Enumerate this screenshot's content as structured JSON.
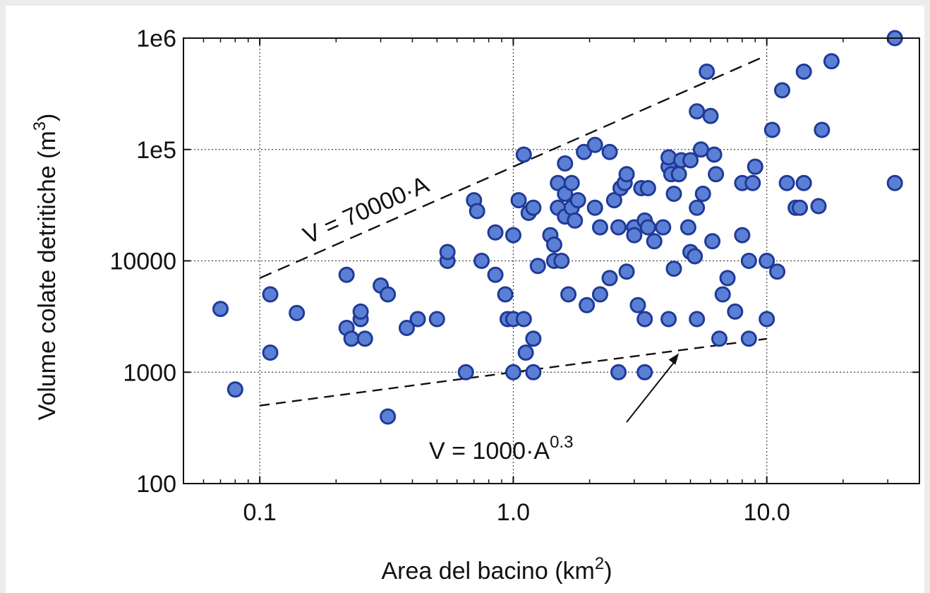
{
  "chart_data": {
    "type": "scatter",
    "xlabel": "Area del bacino (km",
    "xlabel_sup": "2",
    "xlabel_end": ")",
    "ylabel": "Volume colate detritiche (m",
    "ylabel_sup": "3",
    "ylabel_end": ")",
    "x_scale": "log",
    "y_scale": "log",
    "xlim": [
      0.05,
      40
    ],
    "ylim": [
      100,
      1000000
    ],
    "x_ticks": [
      0.1,
      1.0,
      10.0
    ],
    "x_tick_labels": [
      "0.1",
      "1.0",
      "10.0"
    ],
    "y_ticks": [
      100,
      1000,
      10000,
      100000,
      1000000
    ],
    "y_tick_labels": [
      "100",
      "1000",
      "10000",
      "1e5",
      "1e6"
    ],
    "grid": true,
    "marker_fill": "#5b7fd4",
    "marker_stroke": "#1f3a96",
    "lines": [
      {
        "label": "V = 70000·A",
        "coef": 70000,
        "exp": 1.0,
        "x_range": [
          0.1,
          10
        ],
        "style": "dashed"
      },
      {
        "label": "V = 1000·A",
        "label_sup": "0.3",
        "coef": 1000,
        "exp": 0.3,
        "x_range": [
          0.1,
          10
        ],
        "style": "dashed"
      }
    ],
    "points": [
      [
        0.07,
        3700
      ],
      [
        0.08,
        700
      ],
      [
        0.11,
        1500
      ],
      [
        0.11,
        5000
      ],
      [
        0.14,
        3400
      ],
      [
        0.22,
        7500
      ],
      [
        0.22,
        2500
      ],
      [
        0.23,
        2000
      ],
      [
        0.25,
        3000
      ],
      [
        0.25,
        3500
      ],
      [
        0.26,
        2000
      ],
      [
        0.3,
        6000
      ],
      [
        0.32,
        5000
      ],
      [
        0.32,
        400
      ],
      [
        0.38,
        2500
      ],
      [
        0.42,
        3000
      ],
      [
        0.5,
        3000
      ],
      [
        0.55,
        10000
      ],
      [
        0.55,
        12000
      ],
      [
        0.65,
        1000
      ],
      [
        0.7,
        35000
      ],
      [
        0.72,
        28000
      ],
      [
        0.75,
        10000
      ],
      [
        0.85,
        18000
      ],
      [
        0.85,
        7500
      ],
      [
        0.93,
        5000
      ],
      [
        0.95,
        3000
      ],
      [
        1.0,
        3000
      ],
      [
        1.0,
        1000
      ],
      [
        1.0,
        17000
      ],
      [
        1.05,
        35000
      ],
      [
        1.1,
        90000
      ],
      [
        1.1,
        3000
      ],
      [
        1.12,
        1500
      ],
      [
        1.15,
        27000
      ],
      [
        1.2,
        30000
      ],
      [
        1.2,
        2000
      ],
      [
        1.2,
        1000
      ],
      [
        1.25,
        9000
      ],
      [
        1.4,
        17000
      ],
      [
        1.45,
        10000
      ],
      [
        1.45,
        14000
      ],
      [
        1.5,
        30000
      ],
      [
        1.5,
        50000
      ],
      [
        1.55,
        10000
      ],
      [
        1.6,
        75000
      ],
      [
        1.6,
        40000
      ],
      [
        1.6,
        25000
      ],
      [
        1.65,
        5000
      ],
      [
        1.7,
        30000
      ],
      [
        1.7,
        50000
      ],
      [
        1.75,
        23000
      ],
      [
        1.8,
        35000
      ],
      [
        1.9,
        95000
      ],
      [
        1.95,
        4000
      ],
      [
        2.1,
        110000
      ],
      [
        2.1,
        30000
      ],
      [
        2.2,
        20000
      ],
      [
        2.2,
        5000
      ],
      [
        2.4,
        95000
      ],
      [
        2.4,
        7000
      ],
      [
        2.5,
        35000
      ],
      [
        2.6,
        20000
      ],
      [
        2.6,
        1000
      ],
      [
        2.65,
        45000
      ],
      [
        2.75,
        50000
      ],
      [
        2.8,
        60000
      ],
      [
        2.8,
        8000
      ],
      [
        3.0,
        20000
      ],
      [
        3.0,
        17000
      ],
      [
        3.1,
        4000
      ],
      [
        3.2,
        45000
      ],
      [
        3.3,
        23000
      ],
      [
        3.3,
        3000
      ],
      [
        3.3,
        1000
      ],
      [
        3.4,
        20000
      ],
      [
        3.4,
        45000
      ],
      [
        3.6,
        15000
      ],
      [
        3.9,
        20000
      ],
      [
        4.1,
        70000
      ],
      [
        4.1,
        85000
      ],
      [
        4.1,
        3000
      ],
      [
        4.2,
        60000
      ],
      [
        4.3,
        40000
      ],
      [
        4.3,
        8500
      ],
      [
        4.5,
        60000
      ],
      [
        4.6,
        80000
      ],
      [
        4.9,
        20000
      ],
      [
        5.0,
        12000
      ],
      [
        5.0,
        80000
      ],
      [
        5.2,
        11000
      ],
      [
        5.3,
        220000
      ],
      [
        5.3,
        30000
      ],
      [
        5.3,
        3000
      ],
      [
        5.5,
        100000
      ],
      [
        5.6,
        40000
      ],
      [
        5.8,
        500000
      ],
      [
        6.0,
        200000
      ],
      [
        6.1,
        15000
      ],
      [
        6.2,
        90000
      ],
      [
        6.3,
        60000
      ],
      [
        6.5,
        2000
      ],
      [
        6.7,
        5000
      ],
      [
        7.0,
        7000
      ],
      [
        7.5,
        3500
      ],
      [
        8.0,
        50000
      ],
      [
        8.0,
        17000
      ],
      [
        8.5,
        10000
      ],
      [
        8.5,
        2000
      ],
      [
        8.8,
        50000
      ],
      [
        9.0,
        70000
      ],
      [
        10.0,
        10000
      ],
      [
        10.0,
        3000
      ],
      [
        10.5,
        150000
      ],
      [
        11.0,
        8000
      ],
      [
        11.5,
        340000
      ],
      [
        12.0,
        50000
      ],
      [
        13.0,
        30000
      ],
      [
        13.5,
        30000
      ],
      [
        14.0,
        500000
      ],
      [
        14.0,
        50000
      ],
      [
        16.0,
        31000
      ],
      [
        16.5,
        150000
      ],
      [
        18.0,
        620000
      ],
      [
        32.0,
        1000000
      ],
      [
        32.0,
        50000
      ]
    ]
  }
}
